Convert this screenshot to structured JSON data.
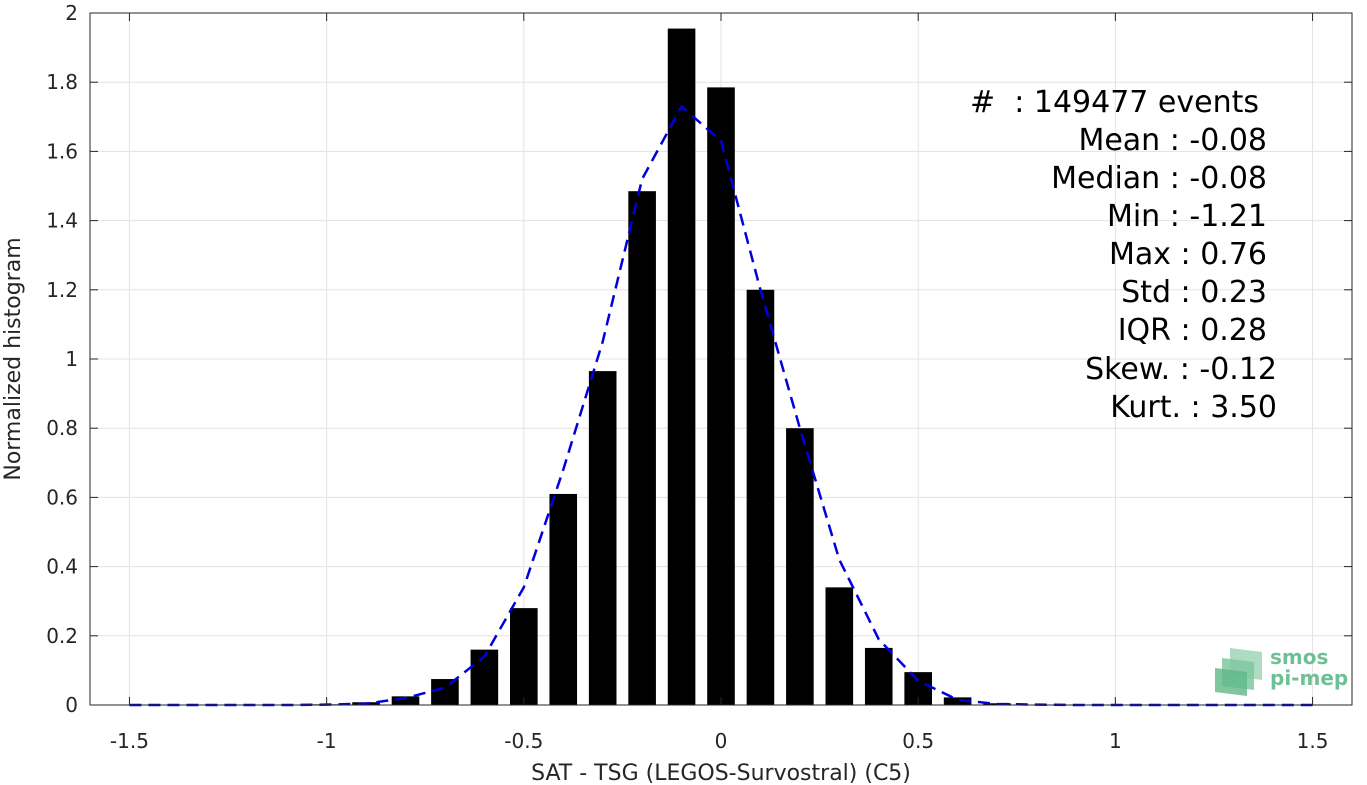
{
  "chart_data": {
    "type": "bar",
    "xlabel": "SAT - TSG (LEGOS-Survostral) (C5)",
    "ylabel": "Normalized histogram",
    "xlim": [
      -1.6,
      1.6
    ],
    "ylim": [
      0,
      2
    ],
    "grid": true,
    "x_ticks": [
      "-1.5",
      "-1",
      "-0.5",
      "0",
      "0.5",
      "1",
      "1.5"
    ],
    "y_ticks": [
      "0",
      "0.2",
      "0.4",
      "0.6",
      "0.8",
      "1",
      "1.2",
      "1.4",
      "1.6",
      "1.8",
      "2"
    ],
    "bar_width": 0.07,
    "bar_color": "#000000",
    "bars": {
      "x": [
        -1.0,
        -0.9,
        -0.8,
        -0.7,
        -0.6,
        -0.5,
        -0.4,
        -0.3,
        -0.2,
        -0.1,
        0.0,
        0.1,
        0.2,
        0.3,
        0.4,
        0.5,
        0.6,
        0.7
      ],
      "y": [
        0.002,
        0.008,
        0.025,
        0.075,
        0.16,
        0.28,
        0.61,
        0.965,
        1.485,
        1.955,
        1.785,
        1.2,
        0.8,
        0.34,
        0.165,
        0.095,
        0.022,
        0.005
      ]
    },
    "fit_curve": {
      "color": "#0000dd",
      "style": "dashed",
      "x": [
        -1.5,
        -1.4,
        -1.3,
        -1.2,
        -1.1,
        -1.0,
        -0.9,
        -0.8,
        -0.7,
        -0.6,
        -0.5,
        -0.4,
        -0.3,
        -0.2,
        -0.1,
        0.0,
        0.1,
        0.2,
        0.3,
        0.4,
        0.5,
        0.6,
        0.7,
        0.8,
        0.9,
        1.0,
        1.1,
        1.2,
        1.3,
        1.4,
        1.5
      ],
      "y": [
        0.0,
        0.0,
        0.0,
        0.0,
        0.0,
        0.001,
        0.004,
        0.02,
        0.05,
        0.14,
        0.34,
        0.68,
        1.05,
        1.52,
        1.73,
        1.63,
        1.2,
        0.8,
        0.42,
        0.19,
        0.07,
        0.015,
        0.003,
        0.001,
        0.0,
        0.0,
        0.0,
        0.0,
        0.0,
        0.0,
        0.0
      ]
    }
  },
  "stats": [
    "#  : 149477 events",
    "Mean : -0.08",
    "Median : -0.08",
    "Min : -1.21",
    "Max : 0.76",
    "Std : 0.23",
    "IQR : 0.28",
    "Skew. : -0.12",
    "Kurt. : 3.50"
  ],
  "logo": {
    "line1": "smos",
    "line2": "pi-mep",
    "color": "#6fbf95"
  }
}
